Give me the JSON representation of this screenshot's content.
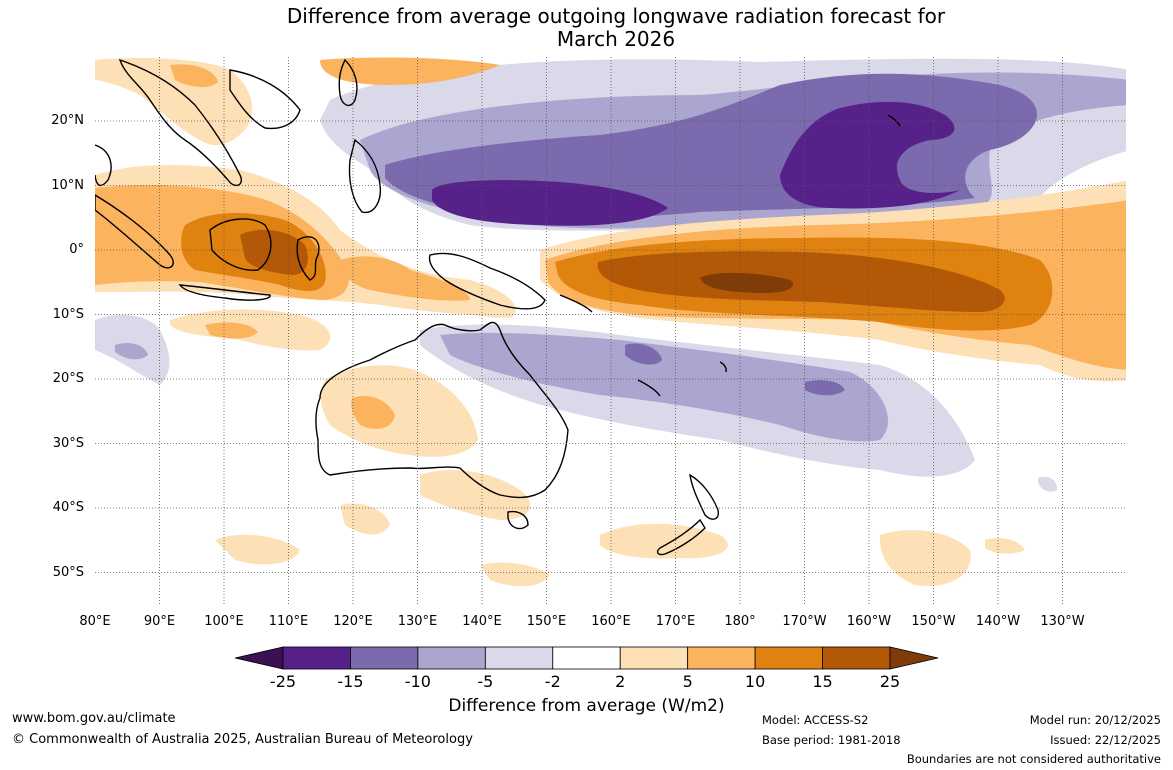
{
  "title_line1": "Difference from average outgoing longwave radiation forecast for",
  "title_line2": "March 2026",
  "lon_labels": [
    "80°E",
    "90°E",
    "100°E",
    "110°E",
    "120°E",
    "130°E",
    "140°E",
    "150°E",
    "160°E",
    "170°E",
    "180°",
    "170°W",
    "160°W",
    "150°W",
    "140°W",
    "130°W"
  ],
  "lat_labels": [
    "20°N",
    "10°N",
    "0°",
    "10°S",
    "20°S",
    "30°S",
    "40°S",
    "50°S"
  ],
  "colorbar": {
    "ticks": [
      "-25",
      "-15",
      "-10",
      "-5",
      "-2",
      "2",
      "5",
      "10",
      "15",
      "25"
    ],
    "colors": [
      "#3d1052",
      "#56228a",
      "#7b6aad",
      "#aba6cf",
      "#d9d9ea",
      "#ffffff",
      "#fee0b6",
      "#fbb35e",
      "#e0820f",
      "#b35806",
      "#7f3b08"
    ],
    "title": "Difference from average (W/m2)"
  },
  "footer": {
    "website": "www.bom.gov.au/climate",
    "copyright": "© Commonwealth of Australia 2025, Australian Bureau of Meteorology",
    "model": "Model: ACCESS-S2",
    "base_period": "Base period: 1981-2018",
    "model_run": "Model run: 20/12/2025",
    "issued": "Issued: 22/12/2025",
    "disclaimer": "Boundaries are not considered authoritative"
  }
}
